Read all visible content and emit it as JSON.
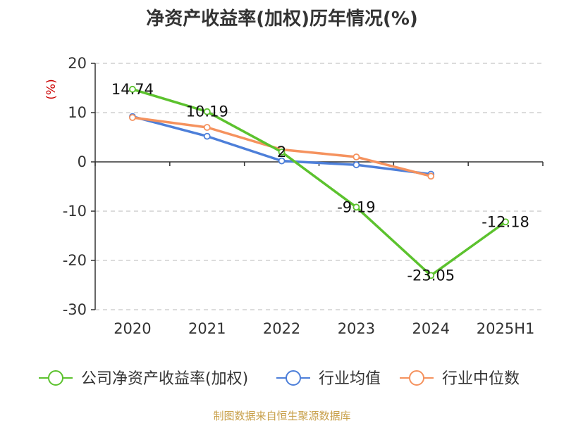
{
  "title": "净资产收益率(加权)历年情况(%)",
  "source": "制图数据来自恒生聚源数据库",
  "chart_data": {
    "type": "line",
    "title": "净资产收益率(加权)历年情况(%)",
    "ylabel": "(%)",
    "xlabel": "",
    "categories": [
      "2020",
      "2021",
      "2022",
      "2023",
      "2024",
      "2025H1"
    ],
    "ylim": [
      -30,
      20
    ],
    "yticks": [
      20,
      10,
      0,
      -10,
      -20,
      -30
    ],
    "grid": true,
    "legend_position": "bottom",
    "series": [
      {
        "name": "公司净资产收益率(加权)",
        "color": "#5cc22e",
        "values": [
          14.74,
          10.19,
          2,
          -9.19,
          -23.05,
          -12.18
        ],
        "labels": [
          "14.74",
          "10.19",
          "2",
          "-9.19",
          "-23.05",
          "-12.18"
        ]
      },
      {
        "name": "行业均值",
        "color": "#4d7fd9",
        "values": [
          9.2,
          5.2,
          0.2,
          -0.6,
          -2.5,
          null
        ]
      },
      {
        "name": "行业中位数",
        "color": "#f5925e",
        "values": [
          9.0,
          7.0,
          2.5,
          1.0,
          -2.9,
          null
        ]
      }
    ]
  }
}
